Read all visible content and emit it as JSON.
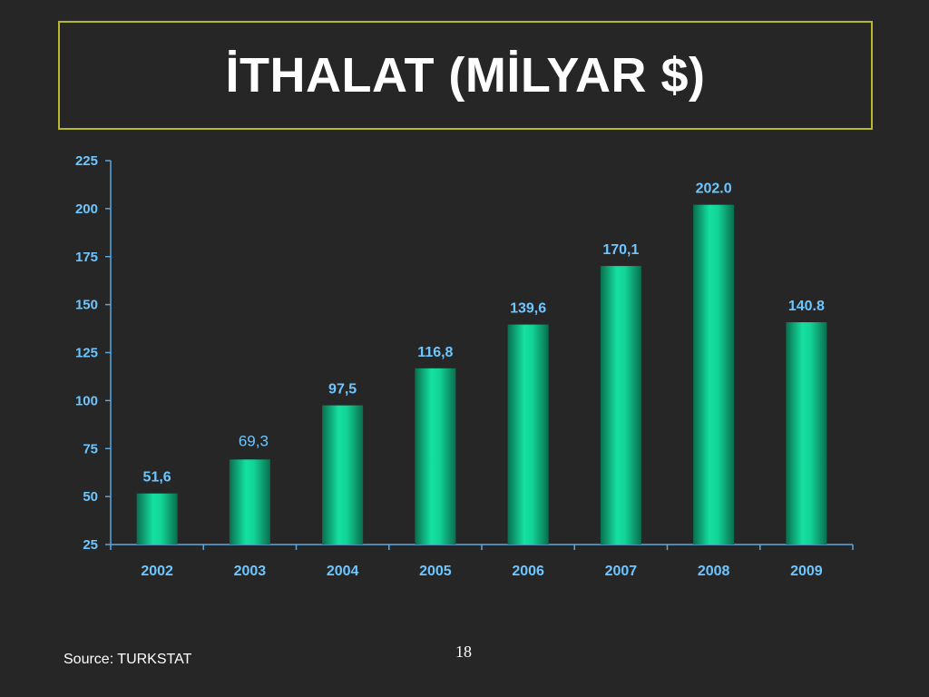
{
  "slide": {
    "title": "İTHALAT (MİLYAR $)",
    "source": "Source: TURKSTAT",
    "page_number": "18"
  },
  "colors": {
    "background": "#262626",
    "title_border": "#b8b82e",
    "axis_text": "#6ec6ff",
    "axis_line": "#5aa8e0",
    "bar_dark": "#0a6e4e",
    "bar_light": "#14e0a0"
  },
  "chart_data": {
    "type": "bar",
    "title": "",
    "xlabel": "",
    "ylabel": "",
    "categories": [
      "2002",
      "2003",
      "2004",
      "2005",
      "2006",
      "2007",
      "2008",
      "2009"
    ],
    "values": [
      51.6,
      69.3,
      97.5,
      116.8,
      139.6,
      170.1,
      202.0,
      140.8
    ],
    "data_labels": [
      "51,6",
      "69,3",
      "97,5",
      "116,8",
      "139,6",
      "170,1",
      "202.0",
      "140.8"
    ],
    "ylim": [
      25,
      225
    ],
    "yticks": [
      "25",
      "50",
      "75",
      "100",
      "125",
      "150",
      "175",
      "200",
      "225"
    ],
    "grid": false,
    "legend": "none"
  }
}
